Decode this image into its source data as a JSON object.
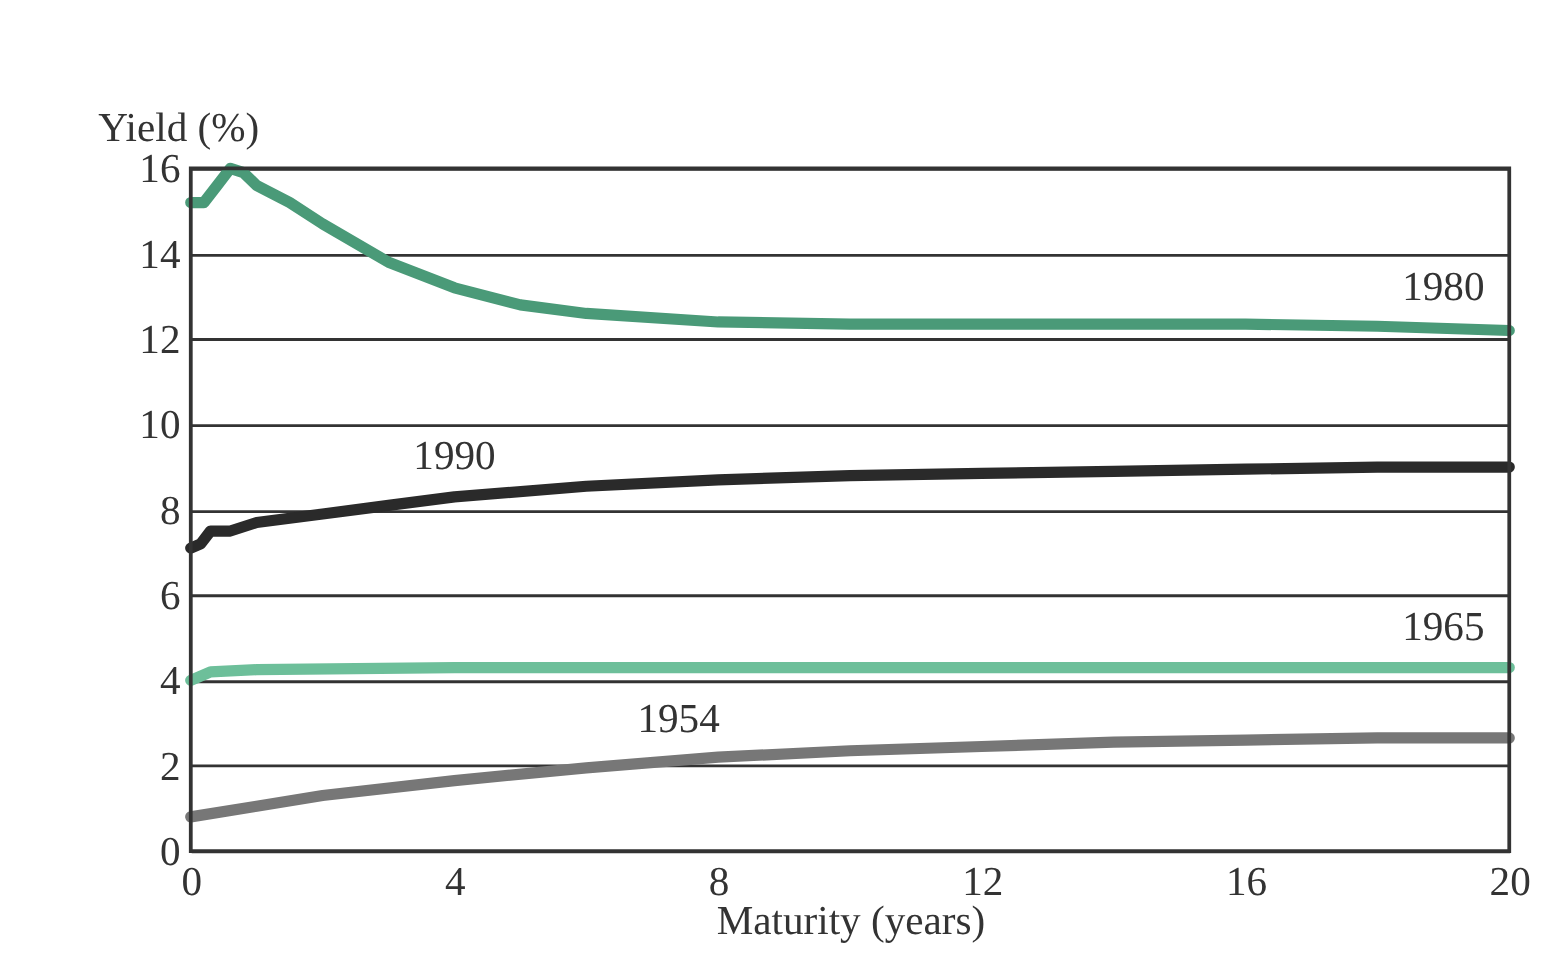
{
  "chart_data": {
    "type": "line",
    "xlabel": "Maturity (years)",
    "ylabel": "Yield (%)",
    "xlim": [
      0,
      20
    ],
    "xticks": [
      0,
      4,
      8,
      12,
      16,
      20
    ],
    "ylim": [
      0,
      16
    ],
    "yticks": [
      0,
      2,
      4,
      6,
      8,
      10,
      12,
      14,
      16
    ],
    "grid": "y",
    "line_style": "solid",
    "series": [
      {
        "name": "1980",
        "color": "#4a9a78",
        "x": [
          0,
          0.2,
          0.4,
          0.6,
          0.8,
          1,
          1.5,
          2,
          3,
          4,
          5,
          6,
          8,
          10,
          12,
          14,
          16,
          18,
          20
        ],
        "values": [
          15.2,
          15.2,
          15.6,
          16.0,
          15.9,
          15.6,
          15.2,
          14.7,
          13.8,
          13.2,
          12.8,
          12.6,
          12.4,
          12.35,
          12.35,
          12.35,
          12.35,
          12.3,
          12.2
        ]
      },
      {
        "name": "1990",
        "color": "#2a2a2a",
        "x": [
          0,
          0.15,
          0.3,
          0.6,
          1,
          2,
          3,
          4,
          6,
          8,
          10,
          12,
          14,
          16,
          18,
          20
        ],
        "values": [
          7.1,
          7.2,
          7.5,
          7.5,
          7.7,
          7.9,
          8.1,
          8.3,
          8.55,
          8.7,
          8.8,
          8.85,
          8.9,
          8.95,
          9.0,
          9.0
        ]
      },
      {
        "name": "1965",
        "color": "#6dbf9a",
        "x": [
          0,
          0.3,
          1,
          4,
          8,
          12,
          16,
          20
        ],
        "values": [
          4.0,
          4.2,
          4.25,
          4.3,
          4.3,
          4.3,
          4.3,
          4.3
        ]
      },
      {
        "name": "1954",
        "color": "#777777",
        "x": [
          0,
          1,
          2,
          4,
          6,
          8,
          10,
          12,
          14,
          16,
          18,
          20
        ],
        "values": [
          0.8,
          1.05,
          1.3,
          1.65,
          1.95,
          2.2,
          2.35,
          2.45,
          2.55,
          2.6,
          2.65,
          2.65
        ]
      }
    ]
  }
}
